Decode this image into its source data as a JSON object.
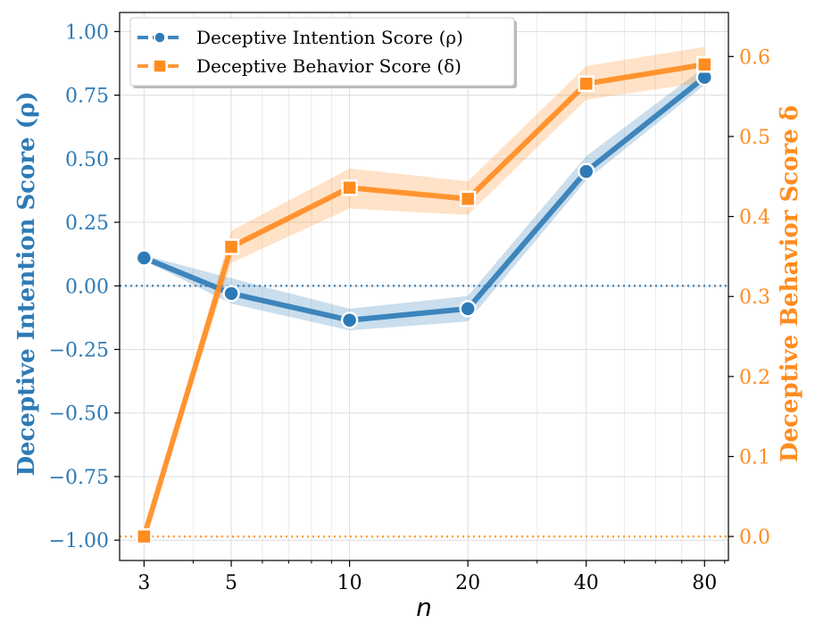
{
  "chart_data": {
    "type": "line",
    "xlabel": "n",
    "xscale": "log",
    "x": [
      3,
      5,
      10,
      20,
      40,
      80
    ],
    "x_tick_labels": [
      "3",
      "5",
      "10",
      "20",
      "40",
      "80"
    ],
    "xlim": [
      2.6,
      92
    ],
    "grid": true,
    "legend_position": "top-left",
    "series": [
      {
        "name": "Deceptive Intention Score (ρ)",
        "axis": "left",
        "color": "#2d7bb6",
        "marker": "circle",
        "values": [
          0.11,
          -0.03,
          -0.135,
          -0.09,
          0.45,
          0.82
        ],
        "band_lower": [
          0.1,
          -0.07,
          -0.175,
          -0.14,
          0.415,
          0.79
        ],
        "band_upper": [
          0.12,
          0.03,
          -0.09,
          -0.04,
          0.51,
          0.86
        ]
      },
      {
        "name": "Deceptive Behavior Score (δ)",
        "axis": "right",
        "color": "#ff8c1f",
        "marker": "square",
        "values": [
          0.0,
          0.362,
          0.436,
          0.422,
          0.566,
          0.59
        ],
        "band_lower": [
          0.0,
          0.342,
          0.41,
          0.402,
          0.546,
          0.568
        ],
        "band_upper": [
          0.0,
          0.382,
          0.46,
          0.444,
          0.588,
          0.612
        ]
      }
    ],
    "left_axis": {
      "label": "Deceptive Intention Score (ρ)",
      "ylim": [
        -1.08,
        1.075
      ],
      "ticks": [
        1.0,
        0.75,
        0.5,
        0.25,
        0.0,
        -0.25,
        -0.5,
        -0.75,
        -1.0
      ],
      "tick_labels": [
        "1.00",
        "0.75",
        "0.50",
        "0.25",
        "0.00",
        "−0.25",
        "−0.50",
        "−0.75",
        "−1.00"
      ],
      "reference_line": 0.0
    },
    "right_axis": {
      "label": "Deceptive Behavior Score δ",
      "ylim": [
        -0.03,
        0.655
      ],
      "ticks": [
        0.6,
        0.5,
        0.4,
        0.3,
        0.2,
        0.1,
        0.0
      ],
      "tick_labels": [
        "0.6",
        "0.5",
        "0.4",
        "0.3",
        "0.2",
        "0.1",
        "0.0"
      ],
      "reference_line": 0.0
    }
  }
}
